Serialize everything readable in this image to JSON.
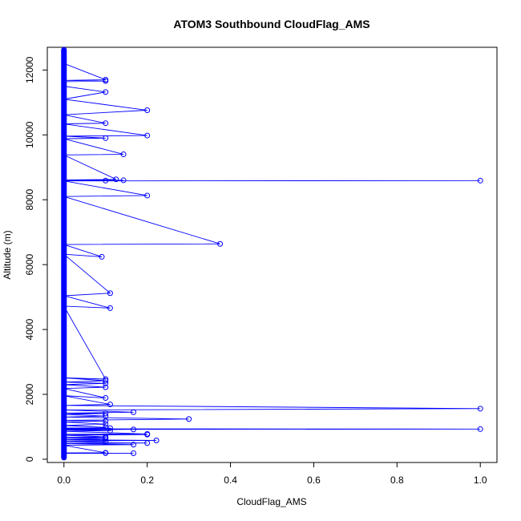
{
  "chart_data": {
    "type": "line",
    "title": "ATOM3 Southbound CloudFlag_AMS",
    "xlabel": "CloudFlag_AMS",
    "ylabel": "Altitude (m)",
    "xlim": [
      -0.04,
      1.04
    ],
    "ylim": [
      -100,
      12700
    ],
    "x_ticks": [
      0.0,
      0.2,
      0.4,
      0.6,
      0.8,
      1.0
    ],
    "x_tick_labels": [
      "0.0",
      "0.2",
      "0.4",
      "0.6",
      "0.8",
      "1.0"
    ],
    "y_ticks": [
      0,
      2000,
      4000,
      6000,
      8000,
      10000,
      12000
    ],
    "y_tick_labels": [
      "0",
      "2000",
      "4000",
      "6000",
      "8000",
      "10000",
      "12000"
    ],
    "series_color": "#0000ff",
    "baseline": {
      "x": 0.0,
      "y_min": 50,
      "y_max": 12620
    },
    "series": [
      {
        "name": "CloudFlag_AMS",
        "marker": "open-circle",
        "points": [
          [
            0,
            12600
          ],
          [
            0,
            12200
          ],
          [
            0.1,
            11700
          ],
          [
            0,
            11680
          ],
          [
            0.1,
            11660
          ],
          [
            0,
            11640
          ],
          [
            0,
            11500
          ],
          [
            0.1,
            11320
          ],
          [
            0,
            11100
          ],
          [
            0.2,
            10760
          ],
          [
            0,
            10620
          ],
          [
            0.1,
            10360
          ],
          [
            0,
            10340
          ],
          [
            0.2,
            9980
          ],
          [
            0,
            9960
          ],
          [
            0.1,
            9900
          ],
          [
            0,
            9880
          ],
          [
            0.143,
            9400
          ],
          [
            0,
            9380
          ],
          [
            0.125,
            8630
          ],
          [
            0,
            8610
          ],
          [
            0.143,
            8600
          ],
          [
            0,
            8590
          ],
          [
            0.1,
            8590
          ],
          [
            0,
            8580
          ],
          [
            1.0,
            8590
          ],
          [
            0,
            8580
          ],
          [
            0.2,
            8130
          ],
          [
            0,
            8100
          ],
          [
            0.375,
            6640
          ],
          [
            0,
            6620
          ],
          [
            0.091,
            6240
          ],
          [
            0,
            6320
          ],
          [
            0.111,
            5120
          ],
          [
            0,
            5040
          ],
          [
            0.111,
            4660
          ],
          [
            0,
            4720
          ],
          [
            0.1,
            2470
          ],
          [
            0,
            2510
          ],
          [
            0.1,
            2420
          ],
          [
            0,
            2380
          ],
          [
            0.1,
            2340
          ],
          [
            0,
            2300
          ],
          [
            0.1,
            2220
          ],
          [
            0,
            2180
          ],
          [
            0.1,
            1890
          ],
          [
            0,
            1960
          ],
          [
            0.111,
            1690
          ],
          [
            0,
            1660
          ],
          [
            1.0,
            1560
          ],
          [
            0,
            1520
          ],
          [
            0.167,
            1450
          ],
          [
            0,
            1420
          ],
          [
            0.1,
            1410
          ],
          [
            0,
            1380
          ],
          [
            0.1,
            1330
          ],
          [
            0,
            1300
          ],
          [
            0.3,
            1240
          ],
          [
            0,
            1200
          ],
          [
            0.1,
            1180
          ],
          [
            0,
            1150
          ],
          [
            0.1,
            1080
          ],
          [
            0,
            1040
          ],
          [
            0.1,
            980
          ],
          [
            0,
            960
          ],
          [
            0.111,
            960
          ],
          [
            0,
            940
          ],
          [
            1.0,
            930
          ],
          [
            0,
            920
          ],
          [
            0.167,
            920
          ],
          [
            0,
            900
          ],
          [
            0.111,
            880
          ],
          [
            0,
            860
          ],
          [
            0.2,
            780
          ],
          [
            0,
            770
          ],
          [
            0.2,
            760
          ],
          [
            0,
            740
          ],
          [
            0.1,
            690
          ],
          [
            0,
            680
          ],
          [
            0.1,
            660
          ],
          [
            0,
            640
          ],
          [
            0.1,
            620
          ],
          [
            0,
            600
          ],
          [
            0.222,
            580
          ],
          [
            0,
            560
          ],
          [
            0.1,
            540
          ],
          [
            0,
            520
          ],
          [
            0.2,
            500
          ],
          [
            0,
            480
          ],
          [
            0.167,
            450
          ],
          [
            0,
            430
          ],
          [
            0.1,
            200
          ],
          [
            0,
            195
          ],
          [
            0.1,
            190
          ],
          [
            0,
            185
          ],
          [
            0.167,
            185
          ],
          [
            0,
            180
          ],
          [
            0,
            100
          ]
        ]
      }
    ]
  }
}
